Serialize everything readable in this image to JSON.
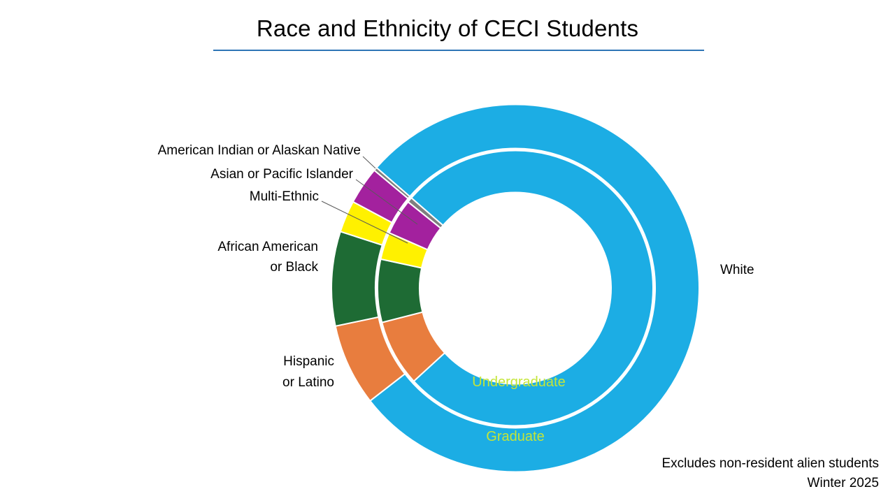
{
  "title": "Race and Ethnicity of CECI Students",
  "chart_data": {
    "type": "pie",
    "subtype": "nested-donut",
    "title": "Race and Ethnicity of CECI Students",
    "categories": [
      "White",
      "Hispanic or Latino",
      "African American or Black",
      "Multi-Ethnic",
      "Asian or Pacific Islander",
      "American Indian or Alaskan Native"
    ],
    "series": [
      {
        "name": "Graduate",
        "ring": "outer",
        "values": [
          78.1,
          7.2,
          8.3,
          2.8,
          3.3,
          0.3
        ]
      },
      {
        "name": "Undergraduate",
        "ring": "inner",
        "values": [
          76.8,
          7.8,
          7.4,
          3.2,
          4.2,
          0.6
        ]
      }
    ],
    "colors": [
      "#1cade4",
      "#e87d3e",
      "#1e6b34",
      "#fff100",
      "#a3219e",
      "#7f7f7f"
    ],
    "units": "percent-estimated",
    "start_angle_deg": 311,
    "direction": "clockwise",
    "legend_position": "labels-around-chart",
    "grid": false
  },
  "labels": {
    "american_indian": "American Indian or Alaskan Native",
    "asian": "Asian or Pacific Islander",
    "multi_ethnic": "Multi-Ethnic",
    "african_american_line1": "African American",
    "african_american_line2": "or Black",
    "hispanic_line1": "Hispanic",
    "hispanic_line2": "or Latino",
    "white": "White",
    "undergraduate": "Undergraduate",
    "graduate": "Graduate"
  },
  "notes": {
    "line1": "Excludes non-resident alien students",
    "line2": "Winter 2025"
  },
  "colors": {
    "accent_underline": "#2e75b6",
    "ring_label_text": "#c4e538",
    "white_slice": "#1cade4",
    "hispanic_slice": "#e87d3e",
    "african_american_slice": "#1e6b34",
    "multi_ethnic_slice": "#fff100",
    "asian_slice": "#a3219e"
  }
}
